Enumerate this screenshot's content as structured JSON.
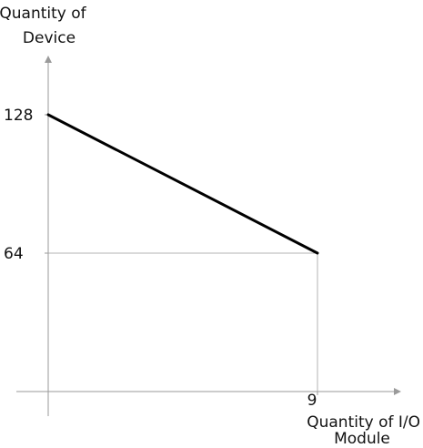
{
  "chart_data": {
    "type": "line",
    "ylabel": [
      "Quantity of",
      "Device"
    ],
    "xlabel": [
      "Quantity of I/O",
      "Module"
    ],
    "x_ticks": [
      {
        "value": 9,
        "label": "9"
      }
    ],
    "y_ticks": [
      {
        "value": 128,
        "label": "128"
      },
      {
        "value": 64,
        "label": "64"
      }
    ],
    "series": [
      {
        "points": [
          {
            "x": 0,
            "y": 128
          },
          {
            "x": 9,
            "y": 64
          }
        ]
      }
    ],
    "xlim": [
      0,
      9
    ],
    "ylim": [
      0,
      128
    ],
    "grid": false,
    "reference_lines": [
      {
        "x": 9,
        "y": 64
      }
    ],
    "colors": {
      "axis": "#9a9a9a",
      "guide": "#b3b3b3",
      "line": "#000000",
      "text": "#111111"
    }
  }
}
